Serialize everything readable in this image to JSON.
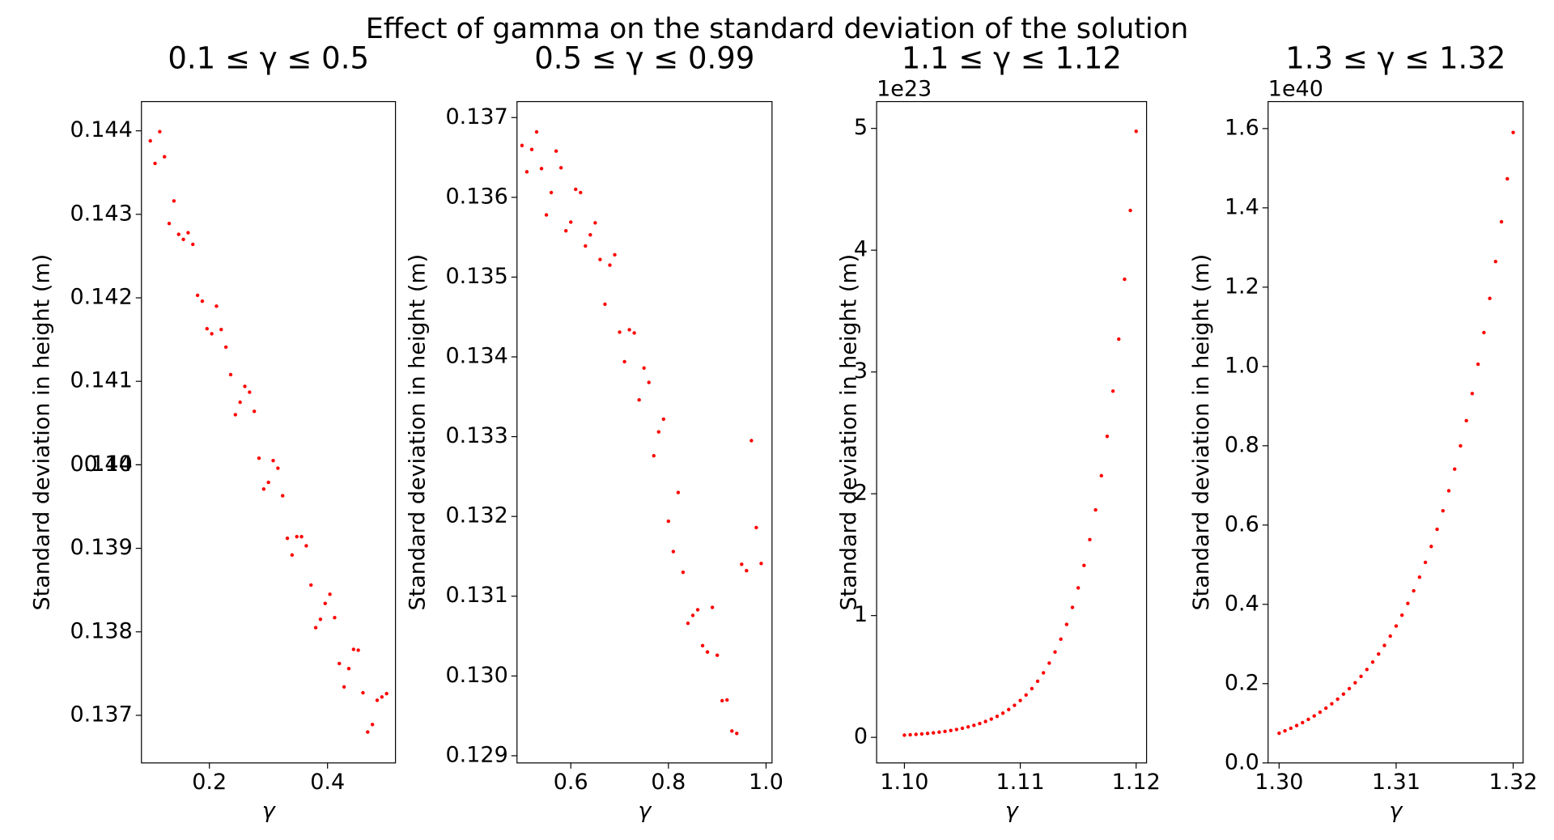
{
  "title": "Effect of gamma on the standard deviation of the solution",
  "chart_data": [
    {
      "type": "scatter",
      "title": "0.1 ≤ γ ≤ 0.5",
      "x_label": "γ",
      "y_label": "Standard deviation in height (m)",
      "color": "red",
      "x": [
        0.1,
        0.108,
        0.116,
        0.124,
        0.132,
        0.14,
        0.148,
        0.156,
        0.164,
        0.172,
        0.18,
        0.188,
        0.196,
        0.204,
        0.212,
        0.22,
        0.228,
        0.236,
        0.244,
        0.252,
        0.26,
        0.268,
        0.276,
        0.284,
        0.292,
        0.3,
        0.308,
        0.316,
        0.324,
        0.332,
        0.34,
        0.348,
        0.356,
        0.364,
        0.372,
        0.38,
        0.388,
        0.396,
        0.404,
        0.412,
        0.42,
        0.428,
        0.436,
        0.444,
        0.452,
        0.46,
        0.468,
        0.476,
        0.484,
        0.492,
        0.5
      ],
      "values": [
        0.14388,
        0.14361,
        0.14399,
        0.14369,
        0.14289,
        0.14316,
        0.14276,
        0.1427,
        0.14278,
        0.14264,
        0.14203,
        0.14196,
        0.14163,
        0.14157,
        0.1419,
        0.14162,
        0.14141,
        0.14108,
        0.1406,
        0.14075,
        0.14094,
        0.14087,
        0.14064,
        0.14008,
        0.13971,
        0.13979,
        0.14005,
        0.13996,
        0.13963,
        0.13912,
        0.13892,
        0.13914,
        0.13914,
        0.13903,
        0.13856,
        0.13805,
        0.13815,
        0.13834,
        0.13845,
        0.13817,
        0.13762,
        0.13734,
        0.13756,
        0.13779,
        0.13778,
        0.13727,
        0.1368,
        0.13689,
        0.13718,
        0.13722,
        0.13726
      ],
      "xlim": [
        0.085,
        0.515
      ],
      "ylim": [
        0.13643,
        0.14435
      ],
      "xticks": [
        0.2,
        0.4
      ],
      "yticks": [
        0.137,
        0.138,
        0.139,
        0.14,
        {
          "value": 0.14,
          "label": "0.140"
        },
        0.141,
        0.142,
        0.143,
        0.144
      ]
    },
    {
      "type": "scatter",
      "title": "0.5 ≤ γ ≤ 0.99",
      "x_label": "γ",
      "y_label": "Standard deviation in height (m)",
      "color": "red",
      "x": [
        0.5,
        0.51,
        0.52,
        0.53,
        0.54,
        0.55,
        0.56,
        0.57,
        0.58,
        0.59,
        0.6,
        0.61,
        0.62,
        0.63,
        0.64,
        0.65,
        0.66,
        0.67,
        0.68,
        0.69,
        0.7,
        0.71,
        0.72,
        0.73,
        0.74,
        0.75,
        0.76,
        0.77,
        0.78,
        0.79,
        0.8,
        0.81,
        0.82,
        0.83,
        0.84,
        0.85,
        0.86,
        0.87,
        0.88,
        0.89,
        0.9,
        0.91,
        0.92,
        0.93,
        0.94,
        0.95,
        0.96,
        0.97,
        0.98,
        0.99
      ],
      "values": [
        0.13665,
        0.13632,
        0.1366,
        0.13682,
        0.13636,
        0.13578,
        0.13606,
        0.13658,
        0.13637,
        0.13558,
        0.13569,
        0.1361,
        0.13606,
        0.13539,
        0.13553,
        0.13568,
        0.13522,
        0.13466,
        0.13515,
        0.13528,
        0.13431,
        0.13394,
        0.13434,
        0.1343,
        0.13346,
        0.13386,
        0.13368,
        0.13276,
        0.13306,
        0.13322,
        0.13194,
        0.13156,
        0.1323,
        0.1313,
        0.13066,
        0.13076,
        0.13083,
        0.13038,
        0.1303,
        0.13086,
        0.13026,
        0.12969,
        0.1297,
        0.12931,
        0.12928,
        0.1314,
        0.13132,
        0.13295,
        0.13186,
        0.13141
      ],
      "xlim": [
        0.4898,
        1.0122
      ],
      "ylim": [
        0.12891,
        0.1372
      ],
      "xticks": [
        0.6,
        0.8,
        {
          "value": 1,
          "label": "1.0"
        }
      ],
      "yticks": [
        0.129,
        {
          "value": 0.13,
          "label": "0.130"
        },
        0.131,
        0.132,
        0.133,
        0.134,
        0.135,
        0.136,
        0.137
      ]
    },
    {
      "type": "scatter",
      "title": "1.1 ≤ γ ≤ 1.12",
      "x_label": "γ",
      "y_label": "Standard deviation in height (m)",
      "color": "red",
      "offset_label": "1e23",
      "x": [
        1.1,
        1.1005,
        1.101,
        1.1015,
        1.102,
        1.1025,
        1.103,
        1.1035,
        1.104,
        1.1045,
        1.105,
        1.1055,
        1.106,
        1.1065,
        1.107,
        1.1075,
        1.108,
        1.1085,
        1.109,
        1.1095,
        1.11,
        1.1105,
        1.111,
        1.1115,
        1.112,
        1.1125,
        1.113,
        1.1135,
        1.114,
        1.1145,
        1.115,
        1.1155,
        1.116,
        1.1165,
        1.117,
        1.1175,
        1.118,
        1.1185,
        1.119,
        1.1195,
        1.12
      ],
      "values": [
        0.0184,
        0.0212,
        0.0243,
        0.028,
        0.0322,
        0.037,
        0.0426,
        0.049,
        0.0564,
        0.0648,
        0.0746,
        0.0858,
        0.0987,
        0.1135,
        0.1306,
        0.1502,
        0.1728,
        0.1987,
        0.2286,
        0.2629,
        0.3026,
        0.3481,
        0.4004,
        0.4606,
        0.5298,
        0.6094,
        0.701,
        0.8063,
        0.9275,
        1.0669,
        1.2271,
        1.4116,
        1.6237,
        1.8677,
        2.1484,
        2.4712,
        2.8426,
        3.2697,
        3.7611,
        4.3263,
        4.976
      ],
      "xlim": [
        1.0976,
        1.1209
      ],
      "ylim": [
        -0.21,
        5.22
      ],
      "xticks": [
        {
          "value": 1.1,
          "label": "1.10"
        },
        1.11,
        {
          "value": 1.12,
          "label": "1.12"
        }
      ],
      "yticks": [
        0,
        1,
        2,
        3,
        4,
        5
      ]
    },
    {
      "type": "scatter",
      "title": "1.3 ≤ γ ≤ 1.32",
      "x_label": "γ",
      "y_label": "Standard deviation in height (m)",
      "color": "red",
      "offset_label": "1e40",
      "x": [
        1.3,
        1.3005,
        1.301,
        1.3015,
        1.302,
        1.3025,
        1.303,
        1.3035,
        1.304,
        1.3045,
        1.305,
        1.3055,
        1.306,
        1.3065,
        1.307,
        1.3075,
        1.308,
        1.3085,
        1.309,
        1.3095,
        1.31,
        1.3105,
        1.311,
        1.3115,
        1.312,
        1.3125,
        1.313,
        1.3135,
        1.314,
        1.3145,
        1.315,
        1.3155,
        1.316,
        1.3165,
        1.317,
        1.3175,
        1.318,
        1.3185,
        1.319,
        1.3195,
        1.32
      ],
      "values": [
        0.075,
        0.081,
        0.0874,
        0.0943,
        0.1018,
        0.1098,
        0.1185,
        0.128,
        0.1381,
        0.1491,
        0.1609,
        0.1737,
        0.1875,
        0.2023,
        0.2184,
        0.2357,
        0.2544,
        0.2746,
        0.2964,
        0.3199,
        0.3453,
        0.3727,
        0.4023,
        0.4342,
        0.4686,
        0.5058,
        0.546,
        0.5893,
        0.636,
        0.6865,
        0.741,
        0.7998,
        0.8632,
        0.9317,
        1.0057,
        1.0855,
        1.1716,
        1.2646,
        1.3649,
        1.4732,
        1.5901
      ],
      "xlim": [
        1.29906,
        1.32085
      ],
      "ylim": [
        0,
        1.668
      ],
      "xticks": [
        {
          "value": 1.3,
          "label": "1.30"
        },
        1.31,
        1.32
      ],
      "yticks": [
        {
          "value": 0,
          "label": "0.0"
        },
        0.2,
        0.4,
        0.6,
        0.8,
        {
          "value": 1,
          "label": "1.0"
        },
        1.2,
        1.4,
        1.6
      ]
    }
  ]
}
